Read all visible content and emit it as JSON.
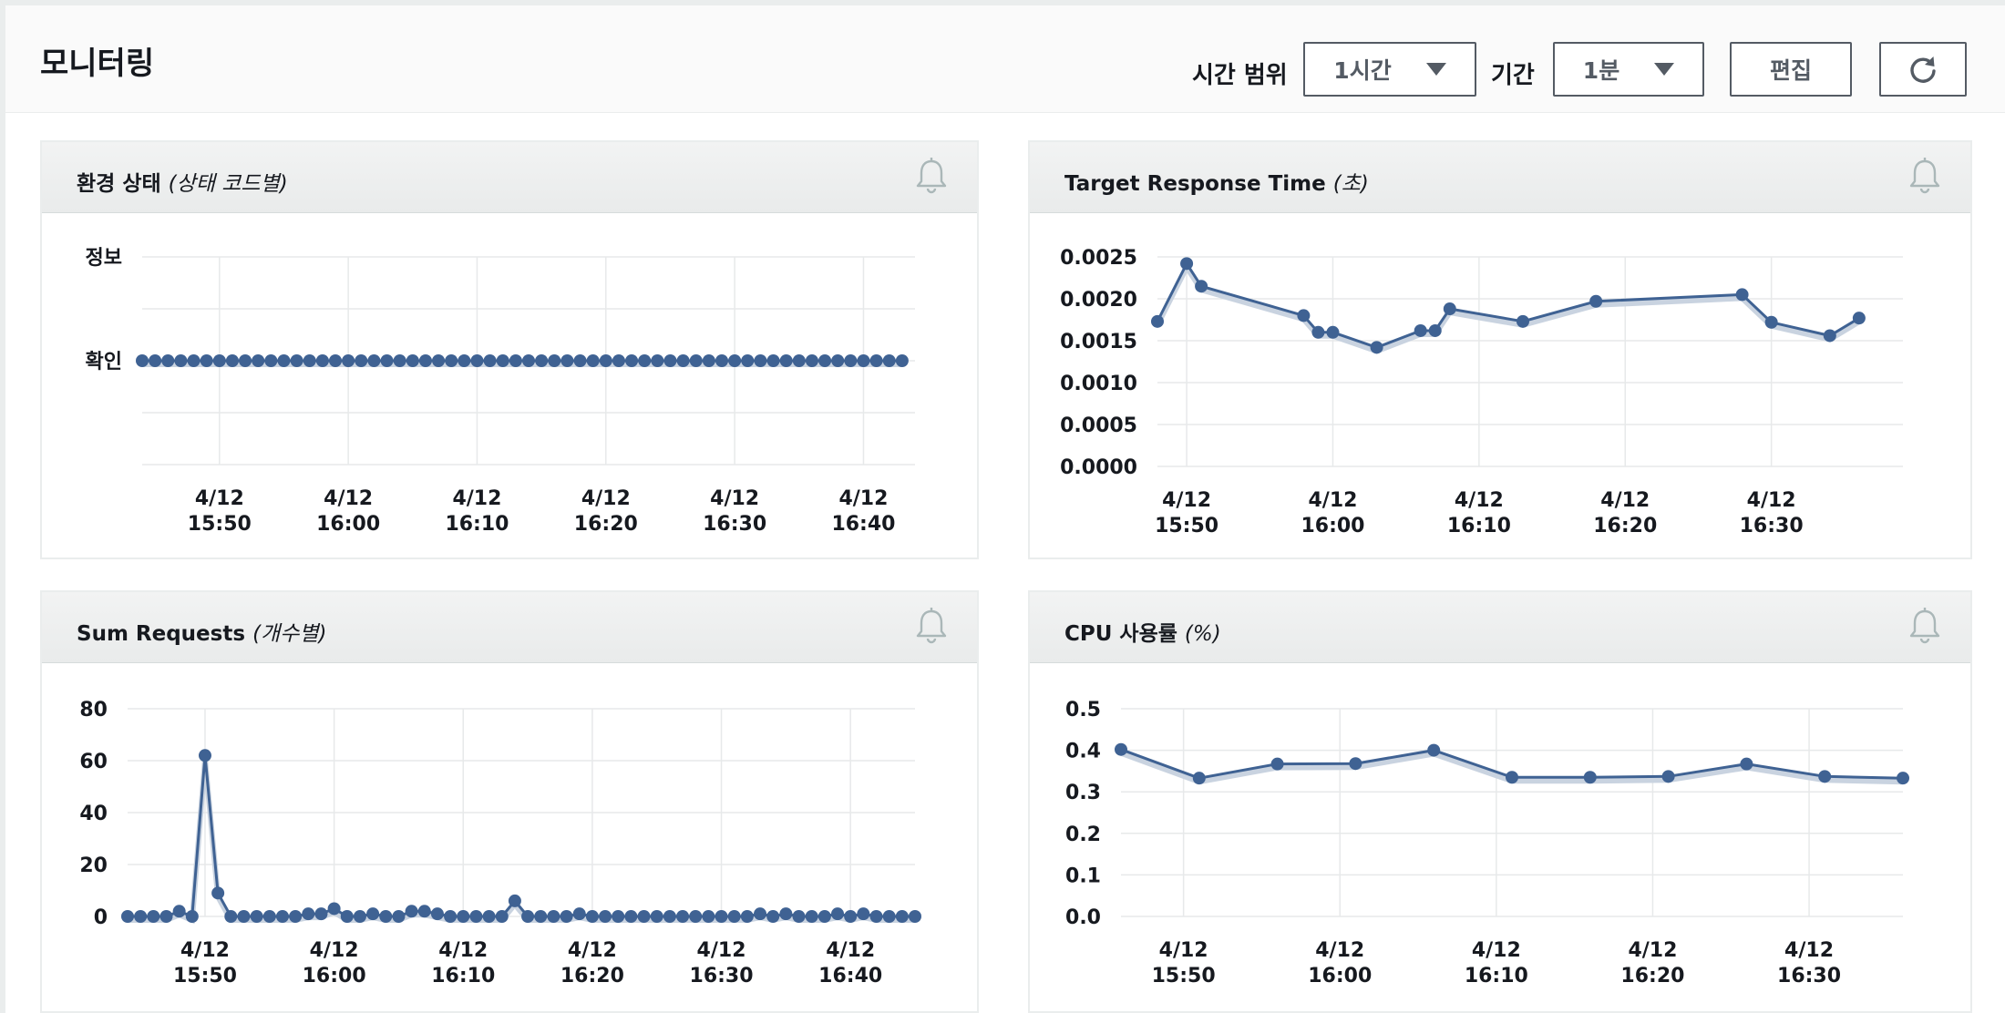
{
  "header": {
    "title": "모니터링",
    "time_range_label": "시간 범위",
    "time_range_value": "1시간",
    "period_label": "기간",
    "period_value": "1분",
    "edit_label": "편집",
    "refresh_icon": "refresh-icon"
  },
  "panels": [
    {
      "title": "환경 상태",
      "subtitle": "(상태 코드별)",
      "icon": "bell-icon"
    },
    {
      "title": "Target Response Time",
      "subtitle": "(초)",
      "icon": "bell-icon"
    },
    {
      "title": "Sum Requests",
      "subtitle": "(개수별)",
      "icon": "bell-icon"
    },
    {
      "title": "CPU 사용률",
      "subtitle": "(%)",
      "icon": "bell-icon"
    }
  ],
  "colors": {
    "series": "#3f6293",
    "grid": "#e7e9ea",
    "axis_text": "#16191f"
  },
  "chart_data": [
    {
      "type": "line",
      "title": "환경 상태 (상태 코드별)",
      "y_categories": [
        "정보",
        "확인"
      ],
      "x_ticks": [
        [
          "4/12",
          "15:50"
        ],
        [
          "4/12",
          "16:00"
        ],
        [
          "4/12",
          "16:10"
        ],
        [
          "4/12",
          "16:20"
        ],
        [
          "4/12",
          "16:30"
        ],
        [
          "4/12",
          "16:40"
        ]
      ],
      "x_tick_minutes": [
        50,
        60,
        70,
        80,
        90,
        100
      ],
      "x_range": [
        44,
        104
      ],
      "series": [
        {
          "x_start": 44,
          "x_step": 1,
          "count": 60,
          "category": "확인"
        }
      ]
    },
    {
      "type": "line",
      "title": "Target Response Time (초)",
      "ylim": [
        0,
        0.0025
      ],
      "y_ticks": [
        "0.0000",
        "0.0005",
        "0.0010",
        "0.0015",
        "0.0020",
        "0.0025"
      ],
      "x_ticks": [
        [
          "4/12",
          "15:50"
        ],
        [
          "4/12",
          "16:00"
        ],
        [
          "4/12",
          "16:10"
        ],
        [
          "4/12",
          "16:20"
        ],
        [
          "4/12",
          "16:30"
        ]
      ],
      "x_tick_minutes": [
        50,
        60,
        70,
        80,
        90
      ],
      "x_range": [
        48,
        99
      ],
      "series": [
        {
          "x": [
            48,
            50,
            51,
            58,
            59,
            60,
            63,
            66,
            67,
            68,
            73,
            78,
            88,
            90,
            94,
            96
          ],
          "y": [
            0.00173,
            0.00242,
            0.00215,
            0.0018,
            0.0016,
            0.0016,
            0.00142,
            0.00162,
            0.00162,
            0.00188,
            0.00173,
            0.00197,
            0.00205,
            0.00172,
            0.00156,
            0.00177
          ]
        }
      ]
    },
    {
      "type": "line",
      "title": "Sum Requests (개수별)",
      "ylim": [
        0,
        80
      ],
      "y_ticks": [
        "0",
        "20",
        "40",
        "60",
        "80"
      ],
      "x_ticks": [
        [
          "4/12",
          "15:50"
        ],
        [
          "4/12",
          "16:00"
        ],
        [
          "4/12",
          "16:10"
        ],
        [
          "4/12",
          "16:20"
        ],
        [
          "4/12",
          "16:30"
        ],
        [
          "4/12",
          "16:40"
        ]
      ],
      "x_tick_minutes": [
        50,
        60,
        70,
        80,
        90,
        100
      ],
      "x_range": [
        44,
        104
      ],
      "series": [
        {
          "x_start": 44,
          "x_step": 1,
          "values": [
            0,
            0,
            0,
            0,
            2,
            0,
            62,
            9,
            0,
            0,
            0,
            0,
            0,
            0,
            1,
            1,
            3,
            0,
            0,
            1,
            0,
            0,
            2,
            2,
            1,
            0,
            0,
            0,
            0,
            0,
            6,
            0,
            0,
            0,
            0,
            1,
            0,
            0,
            0,
            0,
            0,
            0,
            0,
            0,
            0,
            0,
            0,
            0,
            0,
            1,
            0,
            1,
            0,
            0,
            0,
            1,
            0,
            1,
            0,
            0,
            0,
            0
          ]
        }
      ]
    },
    {
      "type": "line",
      "title": "CPU 사용률 (%)",
      "ylim": [
        0,
        0.5
      ],
      "y_ticks": [
        "0.0",
        "0.1",
        "0.2",
        "0.3",
        "0.4",
        "0.5"
      ],
      "x_ticks": [
        [
          "4/12",
          "15:50"
        ],
        [
          "4/12",
          "16:00"
        ],
        [
          "4/12",
          "16:10"
        ],
        [
          "4/12",
          "16:20"
        ],
        [
          "4/12",
          "16:30"
        ]
      ],
      "x_tick_minutes": [
        50,
        60,
        70,
        80,
        90
      ],
      "x_range": [
        46,
        96
      ],
      "series": [
        {
          "x": [
            46,
            51,
            56,
            61,
            66,
            71,
            76,
            81,
            86,
            91,
            96
          ],
          "y": [
            0.402,
            0.333,
            0.367,
            0.368,
            0.4,
            0.335,
            0.335,
            0.337,
            0.367,
            0.337,
            0.333
          ]
        }
      ]
    }
  ]
}
